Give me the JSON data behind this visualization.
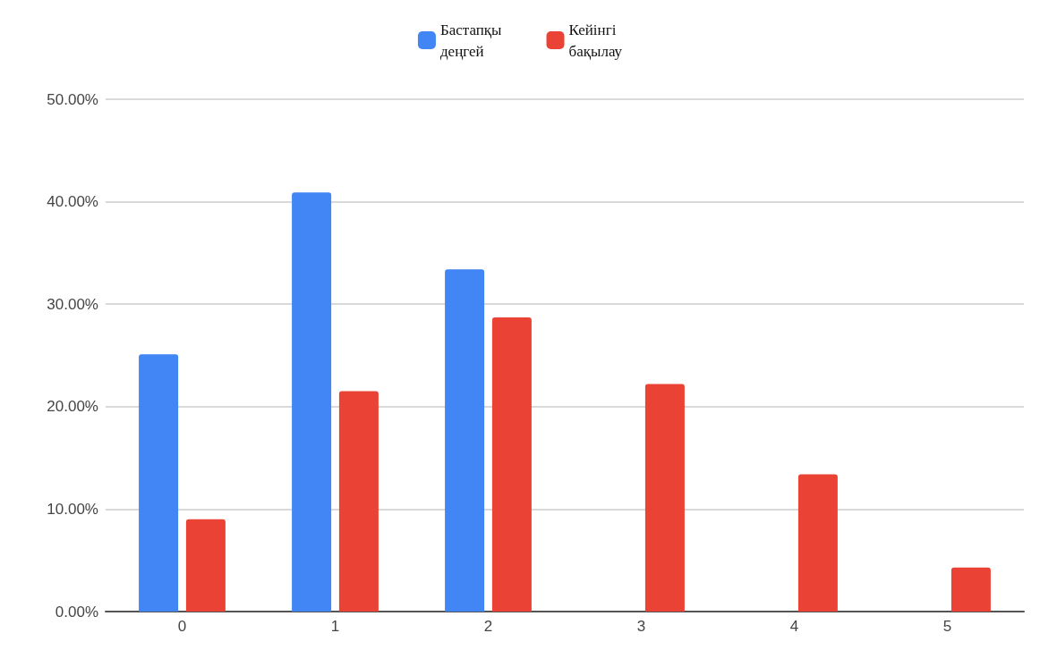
{
  "chart_data": {
    "type": "bar",
    "categories": [
      "0",
      "1",
      "2",
      "3",
      "4",
      "5"
    ],
    "series": [
      {
        "name": "Бастапқы деңгей",
        "color": "#4285f4",
        "values": [
          25.1,
          40.9,
          33.4,
          0,
          0,
          0
        ]
      },
      {
        "name": "Кейінгі бақылау",
        "color": "#ea4335",
        "values": [
          9.0,
          21.5,
          28.7,
          22.2,
          13.4,
          4.3
        ]
      }
    ],
    "ylim": [
      0,
      50
    ],
    "yticks": [
      {
        "value": 0,
        "label": "0.00%"
      },
      {
        "value": 10,
        "label": "10.00%"
      },
      {
        "value": 20,
        "label": "20.00%"
      },
      {
        "value": 30,
        "label": "30.00%"
      },
      {
        "value": 40,
        "label": "40.00%"
      },
      {
        "value": 50,
        "label": "50.00%"
      }
    ],
    "grid": "y",
    "legend": "top"
  }
}
